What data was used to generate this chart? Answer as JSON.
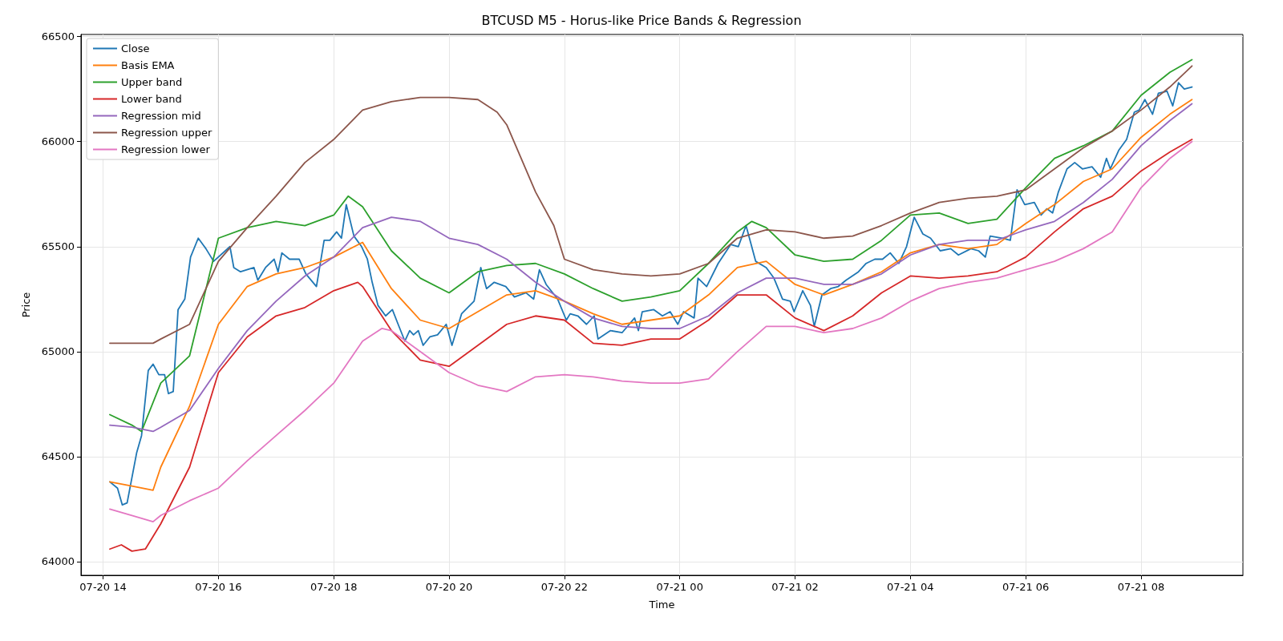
{
  "chart_data": {
    "type": "line",
    "title": "BTCUSD M5 - Horus-like Price Bands & Regression",
    "xlabel": "Time",
    "ylabel": "Price",
    "xlim": [
      "--07-20T13:37",
      "--07-21T09:46"
    ],
    "ylim": [
      63935,
      66510
    ],
    "xticks": [
      {
        "value": "--07-20T14:00",
        "label": "07-20 14"
      },
      {
        "value": "--07-20T16:00",
        "label": "07-20 16"
      },
      {
        "value": "--07-20T18:00",
        "label": "07-20 18"
      },
      {
        "value": "--07-20T20:00",
        "label": "07-20 20"
      },
      {
        "value": "--07-20T22:00",
        "label": "07-20 22"
      },
      {
        "value": "--07-21T00:00",
        "label": "07-21 00"
      },
      {
        "value": "--07-21T02:00",
        "label": "07-21 02"
      },
      {
        "value": "--07-21T04:00",
        "label": "07-21 04"
      },
      {
        "value": "--07-21T06:00",
        "label": "07-21 06"
      },
      {
        "value": "--07-21T08:00",
        "label": "07-21 08"
      }
    ],
    "yticks": [
      64000,
      64500,
      65000,
      65500,
      66000,
      66500
    ],
    "grid": true,
    "legend": "top left",
    "marker": "none",
    "line_style": "solid",
    "series": [
      {
        "name": "Close",
        "color": "#1f77b4",
        "x": [
          "--07-20T14:07",
          "--07-20T14:15",
          "--07-20T14:20",
          "--07-20T14:25",
          "--07-20T14:35",
          "--07-20T14:40",
          "--07-20T14:47",
          "--07-20T14:52",
          "--07-20T14:58",
          "--07-20T15:04",
          "--07-20T15:08",
          "--07-20T15:13",
          "--07-20T15:18",
          "--07-20T15:25",
          "--07-20T15:31",
          "--07-20T15:39",
          "--07-20T15:47",
          "--07-20T15:55",
          "--07-20T16:12",
          "--07-20T16:16",
          "--07-20T16:23",
          "--07-20T16:37",
          "--07-20T16:41",
          "--07-20T16:49",
          "--07-20T16:58",
          "--07-20T17:02",
          "--07-20T17:06",
          "--07-20T17:14",
          "--07-20T17:24",
          "--07-20T17:31",
          "--07-20T17:42",
          "--07-20T17:50",
          "--07-20T17:56",
          "--07-20T18:03",
          "--07-20T18:08",
          "--07-20T18:13",
          "--07-20T18:21",
          "--07-20T18:29",
          "--07-20T18:35",
          "--07-20T18:40",
          "--07-20T18:46",
          "--07-20T18:54",
          "--07-20T19:01",
          "--07-20T19:07",
          "--07-20T19:14",
          "--07-20T19:19",
          "--07-20T19:23",
          "--07-20T19:28",
          "--07-20T19:33",
          "--07-20T19:40",
          "--07-20T19:48",
          "--07-20T19:57",
          "--07-20T20:03",
          "--07-20T20:13",
          "--07-20T20:26",
          "--07-20T20:33",
          "--07-20T20:39",
          "--07-20T20:47",
          "--07-20T20:59",
          "--07-20T21:08",
          "--07-20T21:20",
          "--07-20T21:28",
          "--07-20T21:34",
          "--07-20T21:41",
          "--07-20T21:53",
          "--07-20T22:02",
          "--07-20T22:06",
          "--07-20T22:14",
          "--07-20T22:23",
          "--07-20T22:31",
          "--07-20T22:35",
          "--07-20T22:48",
          "--07-20T23:00",
          "--07-20T23:13",
          "--07-20T23:17",
          "--07-20T23:21",
          "--07-20T23:33",
          "--07-20T23:42",
          "--07-20T23:50",
          "--07-20T23:58",
          "--07-21T00:04",
          "--07-21T00:15",
          "--07-21T00:19",
          "--07-21T00:28",
          "--07-21T00:40",
          "--07-21T00:53",
          "--07-21T01:01",
          "--07-21T01:09",
          "--07-21T01:19",
          "--07-21T01:30",
          "--07-21T01:38",
          "--07-21T01:47",
          "--07-21T01:55",
          "--07-21T01:59",
          "--07-21T02:08",
          "--07-21T02:16",
          "--07-21T02:20",
          "--07-21T02:28",
          "--07-21T02:37",
          "--07-21T02:45",
          "--07-21T02:53",
          "--07-21T03:06",
          "--07-21T03:14",
          "--07-21T03:23",
          "--07-21T03:31",
          "--07-21T03:39",
          "--07-21T03:48",
          "--07-21T03:56",
          "--07-21T04:04",
          "--07-21T04:13",
          "--07-21T04:21",
          "--07-21T04:31",
          "--07-21T04:42",
          "--07-21T04:50",
          "--07-21T05:03",
          "--07-21T05:11",
          "--07-21T05:18",
          "--07-21T05:23",
          "--07-21T05:36",
          "--07-21T05:44",
          "--07-21T05:51",
          "--07-21T05:59",
          "--07-21T06:09",
          "--07-21T06:16",
          "--07-21T06:22",
          "--07-21T06:28",
          "--07-21T06:34",
          "--07-21T06:43",
          "--07-21T06:51",
          "--07-21T06:59",
          "--07-21T07:09",
          "--07-21T07:18",
          "--07-21T07:24",
          "--07-21T07:28",
          "--07-21T07:37",
          "--07-21T07:45",
          "--07-21T07:53",
          "--07-21T07:58",
          "--07-21T08:04",
          "--07-21T08:12",
          "--07-21T08:18",
          "--07-21T08:27",
          "--07-21T08:33",
          "--07-21T08:39",
          "--07-21T08:45",
          "--07-21T08:53"
        ],
        "values": [
          64380,
          64350,
          64270,
          64280,
          64520,
          64600,
          64910,
          64940,
          64890,
          64890,
          64800,
          64810,
          65200,
          65250,
          65450,
          65540,
          65490,
          65430,
          65500,
          65400,
          65380,
          65400,
          65340,
          65400,
          65440,
          65380,
          65470,
          65440,
          65440,
          65370,
          65310,
          65530,
          65530,
          65570,
          65540,
          65700,
          65550,
          65500,
          65440,
          65330,
          65220,
          65170,
          65200,
          65130,
          65050,
          65100,
          65080,
          65100,
          65030,
          65070,
          65080,
          65130,
          65030,
          65180,
          65240,
          65400,
          65300,
          65330,
          65310,
          65260,
          65280,
          65250,
          65390,
          65320,
          65250,
          65150,
          65180,
          65170,
          65130,
          65170,
          65060,
          65100,
          65090,
          65160,
          65100,
          65190,
          65200,
          65170,
          65190,
          65130,
          65190,
          65160,
          65350,
          65310,
          65420,
          65510,
          65500,
          65600,
          65430,
          65400,
          65350,
          65250,
          65240,
          65190,
          65290,
          65220,
          65120,
          65270,
          65300,
          65310,
          65340,
          65380,
          65420,
          65440,
          65440,
          65470,
          65420,
          65500,
          65640,
          65560,
          65540,
          65480,
          65490,
          65460,
          65490,
          65480,
          65450,
          65550,
          65540,
          65530,
          65770,
          65700,
          65710,
          65650,
          65680,
          65660,
          65760,
          65870,
          65900,
          65870,
          65880,
          65830,
          65920,
          65870,
          65960,
          66010,
          66140,
          66150,
          66200,
          66130,
          66230,
          66240,
          66170,
          66280,
          66250,
          66260
        ]
      },
      {
        "name": "Basis EMA",
        "color": "#ff7f0e",
        "x": [
          "--07-20T14:07",
          "--07-20T14:30",
          "--07-20T14:52",
          "--07-20T15:00",
          "--07-20T15:30",
          "--07-20T16:00",
          "--07-20T16:30",
          "--07-20T17:00",
          "--07-20T17:30",
          "--07-20T18:00",
          "--07-20T18:30",
          "--07-20T19:00",
          "--07-20T19:30",
          "--07-20T20:00",
          "--07-20T20:30",
          "--07-20T21:00",
          "--07-20T21:30",
          "--07-20T22:00",
          "--07-20T22:30",
          "--07-20T23:00",
          "--07-20T23:30",
          "--07-21T00:00",
          "--07-21T00:30",
          "--07-21T01:00",
          "--07-21T01:30",
          "--07-21T02:00",
          "--07-21T02:30",
          "--07-21T03:00",
          "--07-21T03:30",
          "--07-21T04:00",
          "--07-21T04:30",
          "--07-21T05:00",
          "--07-21T05:30",
          "--07-21T06:00",
          "--07-21T06:30",
          "--07-21T07:00",
          "--07-21T07:30",
          "--07-21T08:00",
          "--07-21T08:30",
          "--07-21T08:53"
        ],
        "values": [
          64380,
          64360,
          64340,
          64450,
          64740,
          65130,
          65310,
          65370,
          65400,
          65450,
          65520,
          65300,
          65150,
          65110,
          65190,
          65270,
          65290,
          65240,
          65180,
          65130,
          65150,
          65170,
          65270,
          65400,
          65430,
          65320,
          65270,
          65320,
          65380,
          65470,
          65510,
          65490,
          65510,
          65610,
          65700,
          65810,
          65870,
          66020,
          66130,
          66200
        ]
      },
      {
        "name": "Upper band",
        "color": "#2ca02c",
        "x": [
          "--07-20T14:07",
          "--07-20T14:30",
          "--07-20T14:40",
          "--07-20T15:00",
          "--07-20T15:30",
          "--07-20T16:00",
          "--07-20T16:30",
          "--07-20T17:00",
          "--07-20T17:30",
          "--07-20T18:00",
          "--07-20T18:15",
          "--07-20T18:30",
          "--07-20T19:00",
          "--07-20T19:30",
          "--07-20T20:00",
          "--07-20T20:30",
          "--07-20T21:00",
          "--07-20T21:30",
          "--07-20T22:00",
          "--07-20T22:30",
          "--07-20T23:00",
          "--07-20T23:30",
          "--07-21T00:00",
          "--07-21T00:30",
          "--07-21T01:00",
          "--07-21T01:15",
          "--07-21T01:30",
          "--07-21T02:00",
          "--07-21T02:30",
          "--07-21T03:00",
          "--07-21T03:30",
          "--07-21T04:00",
          "--07-21T04:30",
          "--07-21T05:00",
          "--07-21T05:30",
          "--07-21T06:00",
          "--07-21T06:30",
          "--07-21T07:00",
          "--07-21T07:30",
          "--07-21T08:00",
          "--07-21T08:30",
          "--07-21T08:53"
        ],
        "values": [
          64700,
          64650,
          64620,
          64850,
          64980,
          65540,
          65590,
          65620,
          65600,
          65650,
          65740,
          65690,
          65480,
          65350,
          65280,
          65380,
          65410,
          65420,
          65370,
          65300,
          65240,
          65260,
          65290,
          65420,
          65570,
          65620,
          65590,
          65460,
          65430,
          65440,
          65530,
          65650,
          65660,
          65610,
          65630,
          65780,
          65920,
          65980,
          66050,
          66220,
          66330,
          66390
        ]
      },
      {
        "name": "Lower band",
        "color": "#d62728",
        "x": [
          "--07-20T14:07",
          "--07-20T14:19",
          "--07-20T14:30",
          "--07-20T14:44",
          "--07-20T15:00",
          "--07-20T15:30",
          "--07-20T16:00",
          "--07-20T16:30",
          "--07-20T17:00",
          "--07-20T17:30",
          "--07-20T18:00",
          "--07-20T18:25",
          "--07-20T18:30",
          "--07-20T19:00",
          "--07-20T19:30",
          "--07-20T20:00",
          "--07-20T20:30",
          "--07-20T21:00",
          "--07-20T21:30",
          "--07-20T22:00",
          "--07-20T22:30",
          "--07-20T23:00",
          "--07-20T23:30",
          "--07-21T00:00",
          "--07-21T00:30",
          "--07-21T01:00",
          "--07-21T01:30",
          "--07-21T02:00",
          "--07-21T02:30",
          "--07-21T03:00",
          "--07-21T03:30",
          "--07-21T04:00",
          "--07-21T04:30",
          "--07-21T05:00",
          "--07-21T05:30",
          "--07-21T06:00",
          "--07-21T06:30",
          "--07-21T07:00",
          "--07-21T07:30",
          "--07-21T08:00",
          "--07-21T08:30",
          "--07-21T08:53"
        ],
        "values": [
          64060,
          64080,
          64050,
          64060,
          64180,
          64450,
          64900,
          65070,
          65170,
          65210,
          65290,
          65330,
          65310,
          65100,
          64960,
          64930,
          65030,
          65130,
          65170,
          65150,
          65040,
          65030,
          65060,
          65060,
          65150,
          65270,
          65270,
          65160,
          65100,
          65170,
          65280,
          65360,
          65350,
          65360,
          65380,
          65450,
          65570,
          65680,
          65740,
          65860,
          65950,
          66010
        ]
      },
      {
        "name": "Regression mid",
        "color": "#9467bd",
        "x": [
          "--07-20T14:07",
          "--07-20T14:30",
          "--07-20T14:52",
          "--07-20T15:00",
          "--07-20T15:30",
          "--07-20T16:00",
          "--07-20T16:30",
          "--07-20T17:00",
          "--07-20T17:30",
          "--07-20T18:00",
          "--07-20T18:30",
          "--07-20T19:00",
          "--07-20T19:30",
          "--07-20T20:00",
          "--07-20T20:30",
          "--07-20T21:00",
          "--07-20T21:30",
          "--07-20T22:00",
          "--07-20T22:30",
          "--07-20T23:00",
          "--07-20T23:30",
          "--07-21T00:00",
          "--07-21T00:30",
          "--07-21T01:00",
          "--07-21T01:30",
          "--07-21T02:00",
          "--07-21T02:30",
          "--07-21T03:00",
          "--07-21T03:30",
          "--07-21T04:00",
          "--07-21T04:30",
          "--07-21T05:00",
          "--07-21T05:30",
          "--07-21T06:00",
          "--07-21T06:30",
          "--07-21T07:00",
          "--07-21T07:30",
          "--07-21T08:00",
          "--07-21T08:30",
          "--07-21T08:53"
        ],
        "values": [
          64650,
          64640,
          64620,
          64640,
          64720,
          64920,
          65100,
          65240,
          65360,
          65450,
          65590,
          65640,
          65620,
          65540,
          65510,
          65440,
          65330,
          65240,
          65160,
          65120,
          65110,
          65110,
          65170,
          65280,
          65350,
          65350,
          65320,
          65320,
          65370,
          65460,
          65510,
          65530,
          65530,
          65580,
          65620,
          65710,
          65820,
          65980,
          66100,
          66180
        ]
      },
      {
        "name": "Regression upper",
        "color": "#8c564b",
        "x": [
          "--07-20T14:07",
          "--07-20T14:30",
          "--07-20T14:52",
          "--07-20T15:00",
          "--07-20T15:30",
          "--07-20T16:00",
          "--07-20T16:30",
          "--07-20T17:00",
          "--07-20T17:30",
          "--07-20T18:00",
          "--07-20T18:30",
          "--07-20T19:00",
          "--07-20T19:30",
          "--07-20T20:00",
          "--07-20T20:30",
          "--07-20T20:50",
          "--07-20T21:00",
          "--07-20T21:30",
          "--07-20T21:49",
          "--07-20T22:00",
          "--07-20T22:30",
          "--07-20T23:00",
          "--07-20T23:30",
          "--07-21T00:00",
          "--07-21T00:30",
          "--07-21T01:00",
          "--07-21T01:30",
          "--07-21T02:00",
          "--07-21T02:30",
          "--07-21T03:00",
          "--07-21T03:30",
          "--07-21T04:00",
          "--07-21T04:30",
          "--07-21T05:00",
          "--07-21T05:30",
          "--07-21T06:00",
          "--07-21T06:30",
          "--07-21T07:00",
          "--07-21T07:30",
          "--07-21T08:00",
          "--07-21T08:30",
          "--07-21T08:53"
        ],
        "values": [
          65040,
          65040,
          65040,
          65060,
          65130,
          65430,
          65590,
          65740,
          65900,
          66010,
          66150,
          66190,
          66210,
          66210,
          66200,
          66140,
          66080,
          65760,
          65600,
          65440,
          65390,
          65370,
          65360,
          65370,
          65420,
          65540,
          65580,
          65570,
          65540,
          65550,
          65600,
          65660,
          65710,
          65730,
          65740,
          65770,
          65870,
          65970,
          66050,
          66150,
          66260,
          66360
        ]
      },
      {
        "name": "Regression lower",
        "color": "#e377c2",
        "x": [
          "--07-20T14:07",
          "--07-20T14:30",
          "--07-20T14:52",
          "--07-20T15:00",
          "--07-20T15:30",
          "--07-20T16:00",
          "--07-20T16:30",
          "--07-20T17:00",
          "--07-20T17:30",
          "--07-20T18:00",
          "--07-20T18:30",
          "--07-20T18:50",
          "--07-20T19:00",
          "--07-20T19:30",
          "--07-20T20:00",
          "--07-20T20:30",
          "--07-20T21:00",
          "--07-20T21:30",
          "--07-20T22:00",
          "--07-20T22:30",
          "--07-20T23:00",
          "--07-20T23:30",
          "--07-21T00:00",
          "--07-21T00:30",
          "--07-21T01:00",
          "--07-21T01:30",
          "--07-21T02:00",
          "--07-21T02:30",
          "--07-21T03:00",
          "--07-21T03:30",
          "--07-21T04:00",
          "--07-21T04:30",
          "--07-21T05:00",
          "--07-21T05:30",
          "--07-21T06:00",
          "--07-21T06:30",
          "--07-21T07:00",
          "--07-21T07:30",
          "--07-21T08:00",
          "--07-21T08:30",
          "--07-21T08:53"
        ],
        "values": [
          64250,
          64220,
          64190,
          64220,
          64290,
          64350,
          64480,
          64600,
          64720,
          64850,
          65050,
          65110,
          65100,
          65000,
          64900,
          64840,
          64810,
          64880,
          64890,
          64880,
          64860,
          64850,
          64850,
          64870,
          65000,
          65120,
          65120,
          65090,
          65110,
          65160,
          65240,
          65300,
          65330,
          65350,
          65390,
          65430,
          65490,
          65570,
          65780,
          65920,
          66000
        ]
      }
    ]
  }
}
